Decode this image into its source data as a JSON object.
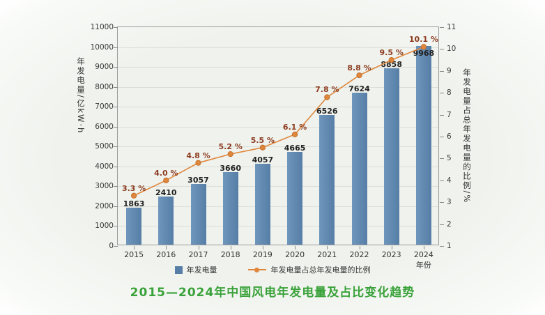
{
  "title": "2015—2024年中国风电年发电量及占比变化趋势",
  "legend": {
    "bars": "年发电量",
    "line": "年发电量占总年发电量的比例"
  },
  "colors": {
    "bar": "#567ea6",
    "bar_light": "#6f96bc",
    "line": "#e0873c",
    "line_dark": "#c06e2a",
    "percent_label": "#8d3c20",
    "value_label": "#222222",
    "title": "#3aa23a",
    "axis": "#8a8a8a",
    "grid": "#dcdfd8",
    "background": "#eff2ed"
  },
  "chart_data": {
    "type": "bar+line",
    "categories": [
      "2015",
      "2016",
      "2017",
      "2018",
      "2019",
      "2020",
      "2021",
      "2022",
      "2023",
      "2024"
    ],
    "series": [
      {
        "name": "年发电量",
        "type": "bar",
        "axis": "left",
        "values": [
          1863,
          2410,
          3057,
          3660,
          4057,
          4665,
          6526,
          7624,
          8858,
          9968
        ],
        "labels": [
          "1863",
          "2410",
          "3057",
          "3660",
          "4057",
          "4665",
          "6526",
          "7624",
          "8858",
          "9968"
        ]
      },
      {
        "name": "年发电量占总年发电量的比例",
        "type": "line",
        "axis": "right",
        "unit": "%",
        "values": [
          3.3,
          4.0,
          4.8,
          5.2,
          5.5,
          6.1,
          7.8,
          8.8,
          9.5,
          10.1
        ],
        "labels": [
          "3.3 %",
          "4.0 %",
          "4.8 %",
          "5.2 %",
          "5.5 %",
          "6.1 %",
          "7.8 %",
          "8.8 %",
          "9.5 %",
          "10.1 %"
        ]
      }
    ],
    "left_axis": {
      "label": "年发电量/亿kW·h",
      "min": 0,
      "max": 11000,
      "step": 1000
    },
    "right_axis": {
      "label": "年发电量占总年发电量的比例/%",
      "min": 1,
      "max": 11,
      "step": 1
    },
    "x_axis": {
      "label": "年份"
    },
    "grid": true,
    "legend_position": "bottom",
    "title": "2015—2024年中国风电年发电量及占比变化趋势"
  }
}
